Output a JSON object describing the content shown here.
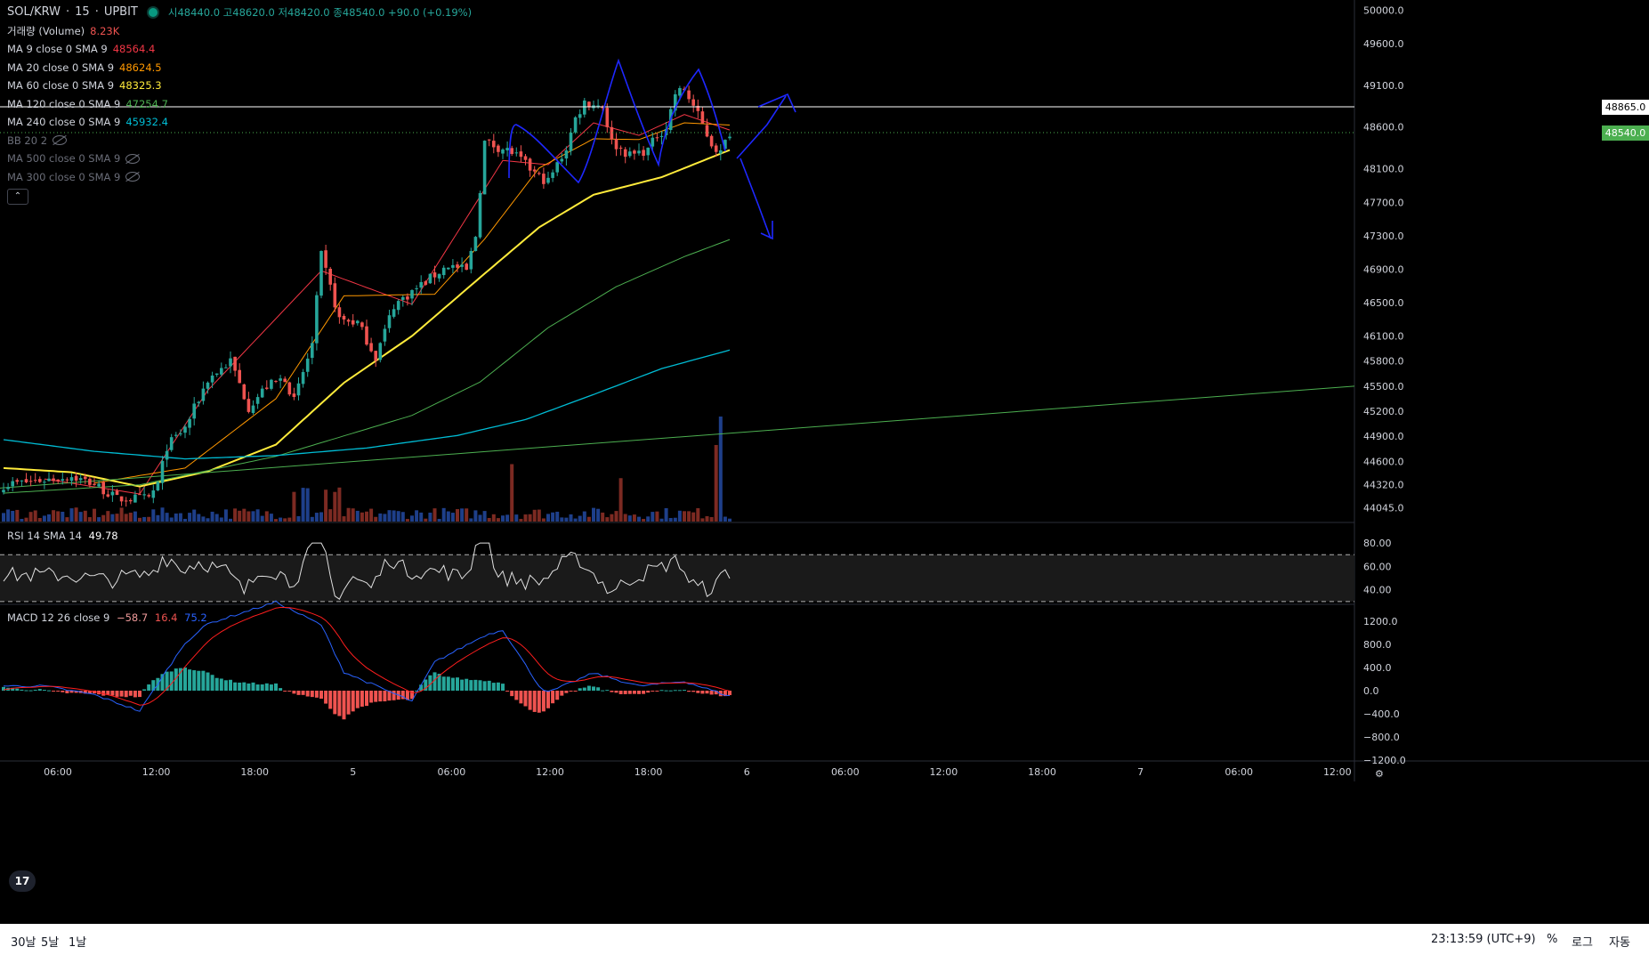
{
  "header": {
    "symbol": "SOL/KRW",
    "interval": "15",
    "exchange": "UPBIT",
    "ohlc": "시48440.0 고48620.0 저48420.0 종48540.0 +90.0 (+0.19%)"
  },
  "indicators": [
    {
      "label": "거래량 (Volume)",
      "value": "8.23K",
      "color": "#ef5350",
      "visible": true
    },
    {
      "label": "MA 9 close 0 SMA 9",
      "value": "48564.4",
      "color": "#f23645",
      "visible": true
    },
    {
      "label": "MA 20 close 0 SMA 9",
      "value": "48624.5",
      "color": "#ff9800",
      "visible": true
    },
    {
      "label": "MA 60 close 0 SMA 9",
      "value": "48325.3",
      "color": "#ffeb3b",
      "visible": true
    },
    {
      "label": "MA 120 close 0 SMA 9",
      "value": "47254.7",
      "color": "#4caf50",
      "visible": true
    },
    {
      "label": "MA 240 close 0 SMA 9",
      "value": "45932.4",
      "color": "#00bcd4",
      "visible": true
    },
    {
      "label": "BB 20 2",
      "value": "",
      "color": "#6a6d78",
      "visible": false
    },
    {
      "label": "MA 500 close 0 SMA 9",
      "value": "",
      "color": "#6a6d78",
      "visible": false
    },
    {
      "label": "MA 300 close 0 SMA 9",
      "value": "",
      "color": "#6a6d78",
      "visible": false
    }
  ],
  "rsi_legend": {
    "label": "RSI 14 SMA 14",
    "value": "49.78"
  },
  "macd_legend": {
    "label": "MACD 12 26 close 9",
    "v1": "−58.7",
    "v2": "16.4",
    "v3": "75.2"
  },
  "price_boxes": {
    "hline": "48865.0",
    "last": "48540.0"
  },
  "bottom": {
    "ranges": [
      "30날",
      "5날",
      "1날"
    ],
    "clock": "23:13:59 (UTC+9)",
    "percent": "%",
    "log": "로그",
    "auto": "자동"
  },
  "colors": {
    "up": "#26a69a",
    "down": "#ef5350",
    "ma9": "#f23645",
    "ma20": "#ff9800",
    "ma60": "#ffeb3b",
    "ma120": "#4caf50",
    "ma240": "#00bcd4",
    "ma_long": "#4caf50",
    "drawing": "#1e28ff",
    "hline": "#ffffff"
  },
  "chart_data": [
    {
      "type": "candlestick",
      "title": "SOL/KRW · 15 · UPBIT",
      "y_ticks": [
        "50000.0",
        "49600.0",
        "49100.0",
        "48600.0",
        "48100.0",
        "47700.0",
        "47300.0",
        "46900.0",
        "46500.0",
        "46100.0",
        "45800.0",
        "45500.0",
        "45200.0",
        "44900.0",
        "44600.0",
        "44320.0",
        "44045.0"
      ],
      "x_ticks": [
        "06:00",
        "12:00",
        "18:00",
        "5",
        "06:00",
        "12:00",
        "18:00",
        "6",
        "06:00",
        "12:00",
        "18:00",
        "7",
        "06:00",
        "12:00"
      ],
      "ylim": [
        43880,
        50120
      ],
      "close_keypoints": [
        [
          0,
          44320
        ],
        [
          15,
          44420
        ],
        [
          20,
          44330
        ],
        [
          25,
          44150
        ],
        [
          32,
          44160
        ],
        [
          34,
          44330
        ],
        [
          36,
          44780
        ],
        [
          40,
          45000
        ],
        [
          45,
          45580
        ],
        [
          50,
          45800
        ],
        [
          54,
          45250
        ],
        [
          58,
          45500
        ],
        [
          62,
          45600
        ],
        [
          64,
          45320
        ],
        [
          68,
          46000
        ],
        [
          70,
          47060
        ],
        [
          74,
          46300
        ],
        [
          78,
          46260
        ],
        [
          82,
          45850
        ],
        [
          86,
          46470
        ],
        [
          92,
          46710
        ],
        [
          98,
          46950
        ],
        [
          102,
          46880
        ],
        [
          104,
          47300
        ],
        [
          106,
          48420
        ],
        [
          112,
          48300
        ],
        [
          118,
          48000
        ],
        [
          120,
          47950
        ],
        [
          124,
          48350
        ],
        [
          126,
          48700
        ],
        [
          128,
          48900
        ],
        [
          132,
          48850
        ],
        [
          134,
          48420
        ],
        [
          138,
          48260
        ],
        [
          142,
          48330
        ],
        [
          144,
          48500
        ],
        [
          146,
          48600
        ],
        [
          148,
          49000
        ],
        [
          150,
          49050
        ],
        [
          152,
          48850
        ],
        [
          156,
          48400
        ],
        [
          158,
          48290
        ],
        [
          160,
          48540
        ]
      ],
      "ma_keypoints": {
        "MA 9": [
          [
            9,
            44390
          ],
          [
            30,
            44210
          ],
          [
            45,
            45450
          ],
          [
            70,
            46880
          ],
          [
            90,
            46480
          ],
          [
            110,
            48200
          ],
          [
            120,
            48150
          ],
          [
            130,
            48650
          ],
          [
            140,
            48500
          ],
          [
            150,
            48750
          ],
          [
            160,
            48564
          ]
        ],
        "MA 20": [
          [
            20,
            44340
          ],
          [
            40,
            44520
          ],
          [
            60,
            45350
          ],
          [
            75,
            46580
          ],
          [
            95,
            46600
          ],
          [
            106,
            47260
          ],
          [
            118,
            48110
          ],
          [
            130,
            48460
          ],
          [
            140,
            48450
          ],
          [
            150,
            48650
          ],
          [
            160,
            48624
          ]
        ],
        "MA 60": [
          [
            0,
            44520
          ],
          [
            15,
            44470
          ],
          [
            30,
            44300
          ],
          [
            45,
            44480
          ],
          [
            60,
            44800
          ],
          [
            75,
            45540
          ],
          [
            90,
            46100
          ],
          [
            105,
            46800
          ],
          [
            118,
            47400
          ],
          [
            130,
            47790
          ],
          [
            145,
            48000
          ],
          [
            160,
            48325
          ]
        ],
        "MA 120": [
          [
            0,
            44220
          ],
          [
            30,
            44320
          ],
          [
            60,
            44660
          ],
          [
            90,
            45150
          ],
          [
            105,
            45550
          ],
          [
            120,
            46200
          ],
          [
            135,
            46690
          ],
          [
            150,
            47050
          ],
          [
            160,
            47254
          ]
        ],
        "MA 240": [
          [
            0,
            44860
          ],
          [
            20,
            44720
          ],
          [
            40,
            44630
          ],
          [
            60,
            44670
          ],
          [
            80,
            44760
          ],
          [
            100,
            44910
          ],
          [
            115,
            45100
          ],
          [
            130,
            45400
          ],
          [
            145,
            45710
          ],
          [
            160,
            45932
          ]
        ]
      },
      "long_ma": {
        "start": 44280,
        "end": 45500
      },
      "hline": 48865.0,
      "volume_peaks": [
        [
          112,
          4500
        ],
        [
          136,
          3400
        ],
        [
          157,
          6000
        ],
        [
          158,
          8230
        ]
      ]
    },
    {
      "type": "line",
      "title": "RSI 14 SMA 14",
      "y_ticks": [
        "80.00",
        "60.00",
        "40.00"
      ],
      "bands": [
        70,
        30
      ],
      "last": 49.78
    },
    {
      "type": "bar",
      "title": "MACD 12 26 close 9",
      "y_ticks": [
        "1200.0",
        "800.0",
        "400.0",
        "0.0",
        "−400.0",
        "−800.0",
        "−1200.0"
      ],
      "macd_last": -58.7,
      "signal_last": 16.4,
      "hist_last": 75.2
    }
  ]
}
